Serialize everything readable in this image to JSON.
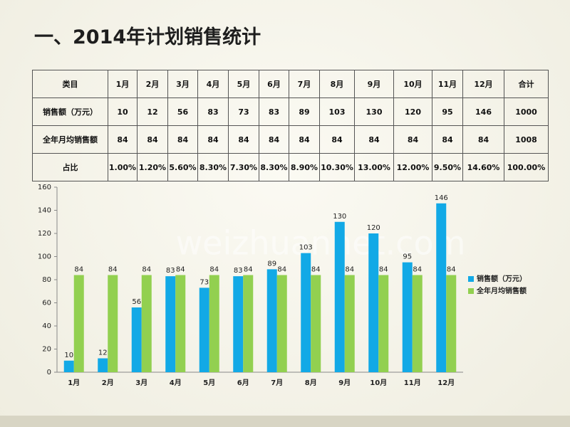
{
  "title": "一、2014年计划销售统计",
  "watermark": "weizhuannet.com",
  "table": {
    "rows": [
      [
        "类目",
        "1月",
        "2月",
        "3月",
        "4月",
        "5月",
        "6月",
        "7月",
        "8月",
        "9月",
        "10月",
        "11月",
        "12月",
        "合计"
      ],
      [
        "销售额（万元）",
        "10",
        "12",
        "56",
        "83",
        "73",
        "83",
        "89",
        "103",
        "130",
        "120",
        "95",
        "146",
        "1000"
      ],
      [
        "全年月均销售额",
        "84",
        "84",
        "84",
        "84",
        "84",
        "84",
        "84",
        "84",
        "84",
        "84",
        "84",
        "84",
        "1008"
      ],
      [
        "占比",
        "1.00%",
        "1.20%",
        "5.60%",
        "8.30%",
        "7.30%",
        "8.30%",
        "8.90%",
        "10.30%",
        "13.00%",
        "12.00%",
        "9.50%",
        "14.60%",
        "100.00%"
      ]
    ]
  },
  "chart_data": {
    "type": "bar",
    "categories": [
      "1月",
      "2月",
      "3月",
      "4月",
      "5月",
      "6月",
      "7月",
      "8月",
      "9月",
      "10月",
      "11月",
      "12月"
    ],
    "series": [
      {
        "name": "销售额（万元）",
        "color": "#12a9e6",
        "values": [
          10,
          12,
          56,
          83,
          73,
          83,
          89,
          103,
          130,
          120,
          95,
          146
        ]
      },
      {
        "name": "全年月均销售额",
        "color": "#92d050",
        "values": [
          84,
          84,
          84,
          84,
          84,
          84,
          84,
          84,
          84,
          84,
          84,
          84
        ]
      }
    ],
    "ylim": [
      0,
      160
    ],
    "yticks": [
      0,
      20,
      40,
      60,
      80,
      100,
      120,
      140,
      160
    ],
    "grid": false,
    "legend": "right",
    "data_labels": true
  }
}
